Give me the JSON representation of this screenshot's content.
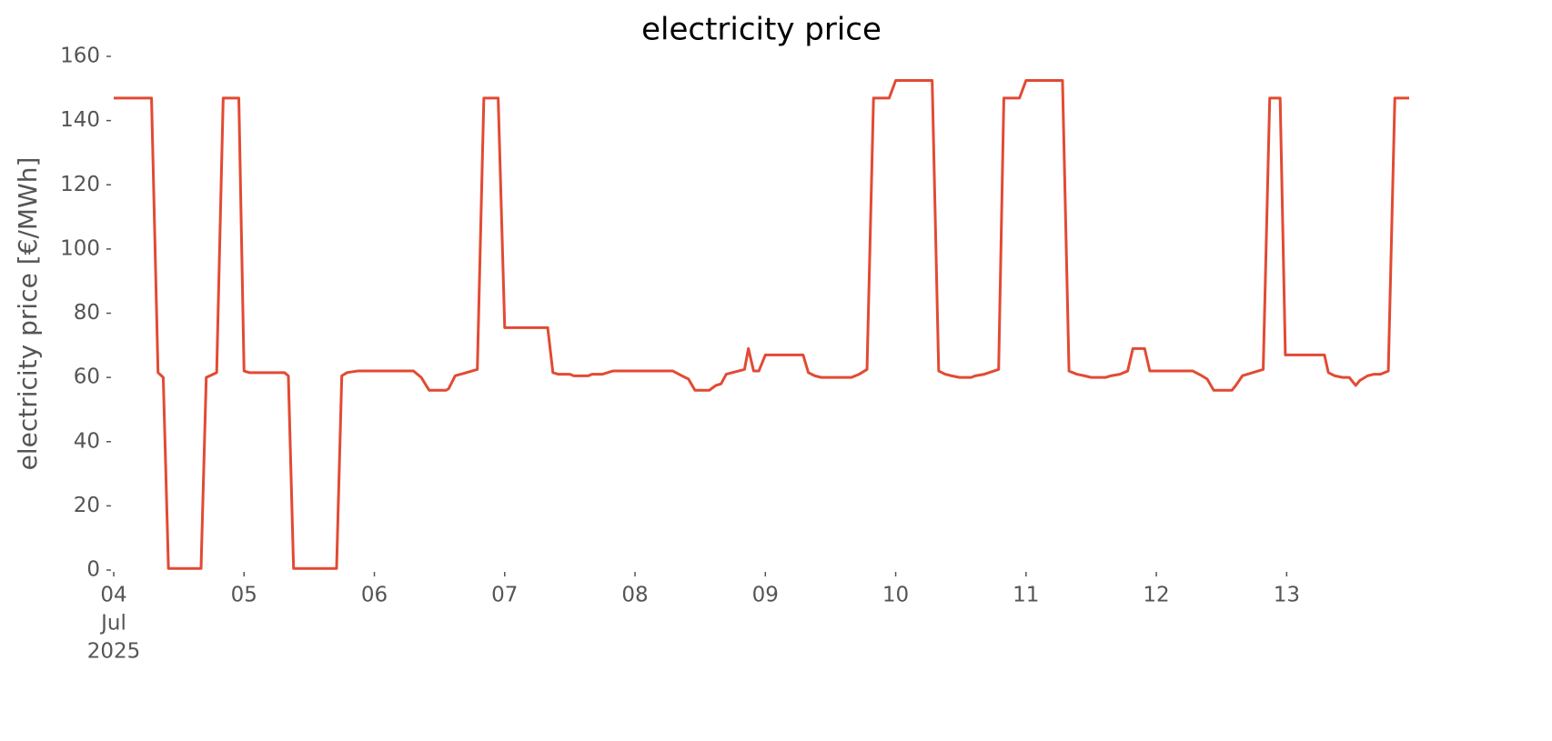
{
  "chart_data": {
    "type": "line",
    "title": "electricity price",
    "ylabel": "electricity price [€/MWh]",
    "color": "#e24a33",
    "grid": false,
    "x": [
      4.0,
      4.29,
      4.34,
      4.38,
      4.42,
      4.67,
      4.71,
      4.79,
      4.84,
      4.96,
      5.0,
      5.04,
      5.31,
      5.34,
      5.38,
      5.71,
      5.75,
      5.79,
      5.87,
      6.3,
      6.36,
      6.42,
      6.55,
      6.57,
      6.62,
      6.79,
      6.84,
      6.95,
      7.0,
      7.33,
      7.37,
      7.41,
      7.5,
      7.53,
      7.64,
      7.67,
      7.75,
      7.83,
      8.29,
      8.36,
      8.41,
      8.46,
      8.57,
      8.62,
      8.66,
      8.7,
      8.84,
      8.87,
      8.91,
      8.95,
      9.0,
      9.29,
      9.33,
      9.38,
      9.43,
      9.66,
      9.72,
      9.78,
      9.83,
      9.95,
      10.0,
      10.28,
      10.33,
      10.38,
      10.43,
      10.49,
      10.58,
      10.61,
      10.68,
      10.79,
      10.83,
      10.95,
      11.0,
      11.28,
      11.33,
      11.39,
      11.45,
      11.5,
      11.61,
      11.65,
      11.72,
      11.78,
      11.82,
      11.91,
      11.95,
      12.28,
      12.35,
      12.39,
      12.44,
      12.58,
      12.61,
      12.66,
      12.82,
      12.87,
      12.95,
      12.99,
      13.29,
      13.32,
      13.37,
      13.43,
      13.48,
      13.53,
      13.56,
      13.62,
      13.67,
      13.72,
      13.78,
      13.83,
      13.94
    ],
    "values": [
      147,
      147,
      61.5,
      60,
      0.5,
      0.5,
      60,
      61.5,
      147,
      147,
      62,
      61.5,
      61.5,
      60.5,
      0.5,
      0.5,
      60.5,
      61.5,
      62,
      62,
      60,
      56,
      56,
      56.5,
      60.5,
      62.5,
      147,
      147,
      75.5,
      75.5,
      61.5,
      61,
      61,
      60.5,
      60.5,
      61,
      61,
      62,
      62,
      60.5,
      59.5,
      56,
      56,
      57.5,
      58,
      61,
      62.5,
      69,
      62,
      62,
      67,
      67,
      61.5,
      60.5,
      60,
      60,
      61,
      62.5,
      147,
      147,
      152.5,
      152.5,
      62,
      61,
      60.5,
      60,
      60,
      60.5,
      61,
      62.5,
      147,
      147,
      152.5,
      152.5,
      62,
      61,
      60.5,
      60,
      60,
      60.5,
      61,
      62,
      69,
      69,
      62,
      62,
      60.5,
      59.5,
      56,
      56,
      57.5,
      60.5,
      62.5,
      147,
      147,
      67,
      67,
      61.5,
      60.5,
      60,
      60,
      57.5,
      59,
      60.5,
      61,
      61,
      62,
      147,
      147
    ],
    "xlim": [
      4,
      13.94
    ],
    "xticks": [
      {
        "value": 4,
        "label": [
          "04",
          "Jul",
          "2025"
        ]
      },
      {
        "value": 5,
        "label": "05"
      },
      {
        "value": 6,
        "label": "06"
      },
      {
        "value": 7,
        "label": "07"
      },
      {
        "value": 8,
        "label": "08"
      },
      {
        "value": 9,
        "label": "09"
      },
      {
        "value": 10,
        "label": "10"
      },
      {
        "value": 11,
        "label": "11"
      },
      {
        "value": 12,
        "label": "12"
      },
      {
        "value": 13,
        "label": "13"
      }
    ],
    "ylim": [
      0,
      160
    ],
    "yticks": [
      0,
      20,
      40,
      60,
      80,
      100,
      120,
      140,
      160
    ]
  }
}
